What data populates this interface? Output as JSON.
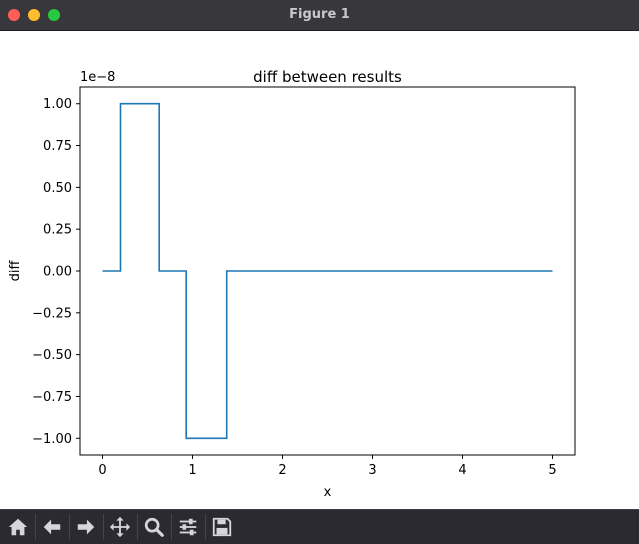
{
  "window": {
    "title": "Figure 1"
  },
  "chart_data": {
    "type": "line",
    "title": "diff between results",
    "xlabel": "x",
    "ylabel": "diff",
    "offset_label": "1e−8",
    "xlim": [
      -0.25,
      5.25
    ],
    "ylim": [
      -1.1,
      1.1
    ],
    "xticks": [
      0,
      1,
      2,
      3,
      4,
      5
    ],
    "xtick_labels": [
      "0",
      "1",
      "2",
      "3",
      "4",
      "5"
    ],
    "yticks": [
      1.0,
      0.75,
      0.5,
      0.25,
      0.0,
      -0.25,
      -0.5,
      -0.75,
      -1.0
    ],
    "ytick_labels": [
      "1.00",
      "0.75",
      "0.50",
      "0.25",
      "0.00",
      "−0.25",
      "−0.50",
      "−0.75",
      "−1.00"
    ],
    "grid": false,
    "series": [
      {
        "color": "#1f77b4",
        "x": [
          0,
          0.2,
          0.2,
          0.63,
          0.63,
          0.93,
          0.93,
          1.38,
          1.38,
          5.0
        ],
        "y": [
          0,
          0,
          1,
          1,
          0,
          0,
          -1,
          -1,
          0,
          0
        ]
      }
    ]
  },
  "toolbar": {
    "buttons": [
      {
        "name": "home-icon"
      },
      {
        "name": "back-icon"
      },
      {
        "name": "forward-icon"
      },
      {
        "name": "pan-icon"
      },
      {
        "name": "zoom-icon"
      },
      {
        "name": "configure-subplots-icon"
      },
      {
        "name": "save-icon"
      }
    ]
  }
}
